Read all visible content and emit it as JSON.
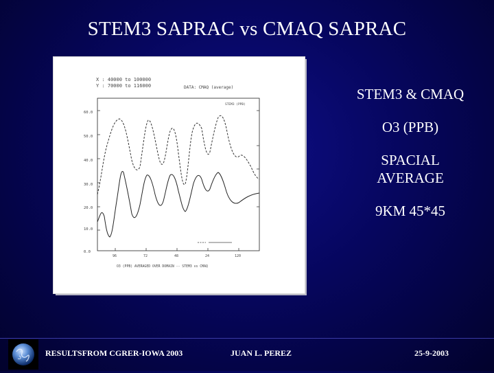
{
  "slide": {
    "title": "STEM3 SAPRAC vs CMAQ SAPRAC",
    "bullets": [
      "STEM3 & CMAQ",
      "O3 (PPB)",
      "SPACIAL AVERAGE",
      "9KM 45*45"
    ]
  },
  "footer": {
    "left": "RESULTSFROM CGRER-IOWA 2003",
    "center": "JUAN L. PEREZ",
    "right": "25-9-2003"
  },
  "figure": {
    "header_lines": [
      "X : 40000 to 100000",
      "Y : 70000 to 116000",
      "DATA: CMAQ (average)"
    ],
    "legend_line": "STEM3 (PPB)",
    "y_ticks": [
      "60.0",
      "50.0",
      "40.0",
      "30.0",
      "20.0",
      "10.0",
      "0.0"
    ],
    "x_ticks": [
      "96",
      "72",
      "48",
      "24",
      "120"
    ],
    "caption": "O3 (PPB) AVERAGED OVER DOMAIN -- STEM3 vs CMAQ",
    "series_desc": [
      "STEM3 O3 spatial average (dashed)",
      "CMAQ O3 spatial average (solid)"
    ]
  },
  "colors": {
    "background": "#06065e",
    "text": "#ffffff",
    "curve": "#333333"
  }
}
